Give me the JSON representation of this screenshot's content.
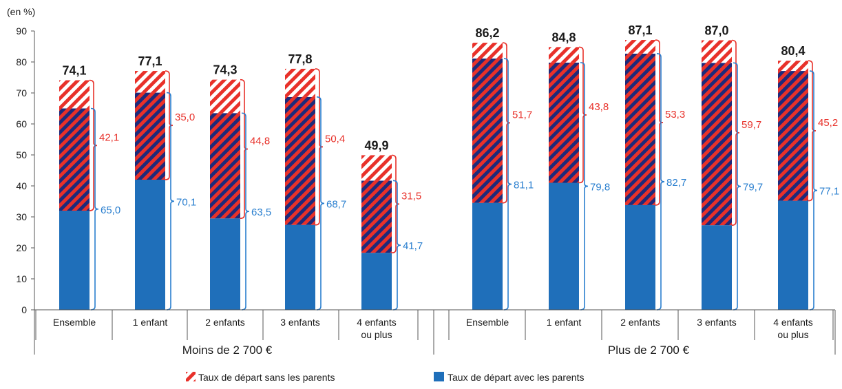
{
  "colors": {
    "blue": "#1f6fba",
    "red": "#e8312a",
    "stripe_dark": "#1e2a7a",
    "red_label": "#e8312a",
    "blue_label": "#2a7fcf",
    "axis": "#555555"
  },
  "chart_data": {
    "type": "bar",
    "stacked": true,
    "unit_label": "(en %)",
    "ylim": [
      0,
      90
    ],
    "yticks": [
      0,
      10,
      20,
      30,
      40,
      50,
      60,
      70,
      80,
      90
    ],
    "grid": false,
    "legend_position": "bottom",
    "groups": [
      {
        "label": "Moins de 2 700 €",
        "categories": [
          {
            "label": [
              "Ensemble"
            ],
            "total": 74.1,
            "total_label": "74,1",
            "blue_base": 32.0,
            "red_top": 65.0,
            "red_value": 42.1,
            "red_label": "42,1",
            "blue_value": 65.0,
            "blue_label": "65,0"
          },
          {
            "label": [
              "1 enfant"
            ],
            "total": 77.1,
            "total_label": "77,1",
            "blue_base": 42.0,
            "red_top": 70.1,
            "red_value": 35.0,
            "red_label": "35,0",
            "blue_value": 70.1,
            "blue_label": "70,1"
          },
          {
            "label": [
              "2 enfants"
            ],
            "total": 74.3,
            "total_label": "74,3",
            "blue_base": 29.5,
            "red_top": 63.5,
            "red_value": 44.8,
            "red_label": "44,8",
            "blue_value": 63.5,
            "blue_label": "63,5"
          },
          {
            "label": [
              "3 enfants"
            ],
            "total": 77.8,
            "total_label": "77,8",
            "blue_base": 27.4,
            "red_top": 68.7,
            "red_value": 50.4,
            "red_label": "50,4",
            "blue_value": 68.7,
            "blue_label": "68,7"
          },
          {
            "label": [
              "4 enfants",
              "ou plus"
            ],
            "total": 49.9,
            "total_label": "49,9",
            "blue_base": 18.4,
            "red_top": 41.7,
            "red_value": 31.5,
            "red_label": "31,5",
            "blue_value": 41.7,
            "blue_label": "41,7"
          }
        ]
      },
      {
        "label": "Plus de 2 700 €",
        "categories": [
          {
            "label": [
              "Ensemble"
            ],
            "total": 86.2,
            "total_label": "86,2",
            "blue_base": 34.5,
            "red_top": 81.1,
            "red_value": 51.7,
            "red_label": "51,7",
            "blue_value": 81.1,
            "blue_label": "81,1"
          },
          {
            "label": [
              "1 enfant"
            ],
            "total": 84.8,
            "total_label": "84,8",
            "blue_base": 41.0,
            "red_top": 79.8,
            "red_value": 43.8,
            "red_label": "43,8",
            "blue_value": 79.8,
            "blue_label": "79,8"
          },
          {
            "label": [
              "2 enfants"
            ],
            "total": 87.1,
            "total_label": "87,1",
            "blue_base": 33.8,
            "red_top": 82.7,
            "red_value": 53.3,
            "red_label": "53,3",
            "blue_value": 82.7,
            "blue_label": "82,7"
          },
          {
            "label": [
              "3 enfants"
            ],
            "total": 87.0,
            "total_label": "87,0",
            "blue_base": 27.3,
            "red_top": 79.7,
            "red_value": 59.7,
            "red_label": "59,7",
            "blue_value": 79.7,
            "blue_label": "79,7"
          },
          {
            "label": [
              "4 enfants",
              "ou plus"
            ],
            "total": 80.4,
            "total_label": "80,4",
            "blue_base": 35.2,
            "red_top": 77.1,
            "red_value": 45.2,
            "red_label": "45,2",
            "blue_value": 77.1,
            "blue_label": "77,1"
          }
        ]
      }
    ],
    "legend": [
      {
        "label": "Taux de départ sans les parents",
        "pattern": "red-stripes"
      },
      {
        "label": "Taux de départ avec les parents",
        "pattern": "solid-blue"
      }
    ]
  }
}
